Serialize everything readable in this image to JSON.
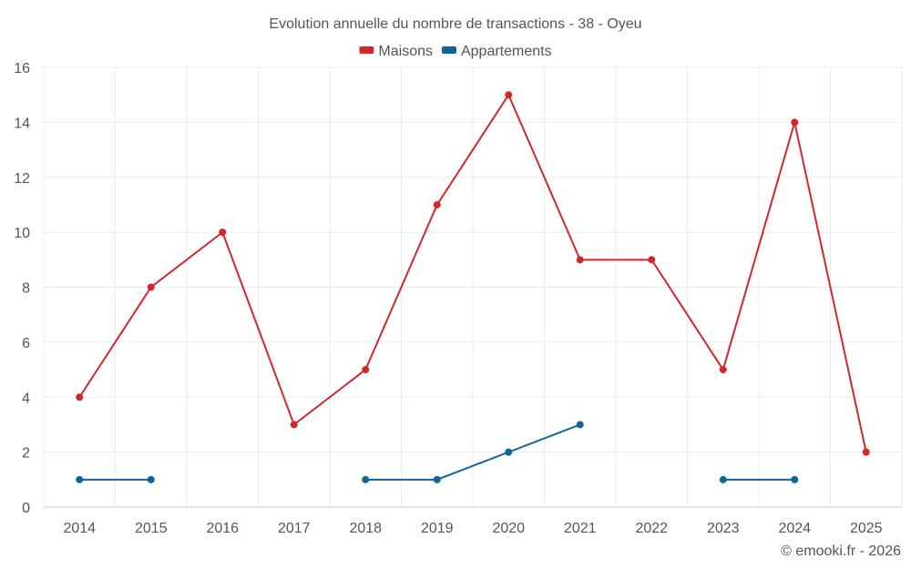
{
  "chart_data": {
    "type": "line",
    "title": "Evolution annuelle du nombre de transactions - 38 - Oyeu",
    "categories": [
      "2014",
      "2015",
      "2016",
      "2017",
      "2018",
      "2019",
      "2020",
      "2021",
      "2022",
      "2023",
      "2024",
      "2025"
    ],
    "ylim": [
      0,
      16
    ],
    "yticks": [
      0,
      2,
      4,
      6,
      8,
      10,
      12,
      14,
      16
    ],
    "grid": true,
    "legend_position": "top-center",
    "series": [
      {
        "name": "Maisons",
        "color": "#d0282d",
        "values": [
          4,
          8,
          10,
          3,
          5,
          11,
          15,
          9,
          9,
          5,
          14,
          2
        ]
      },
      {
        "name": "Appartements",
        "color": "#0d6598",
        "values": [
          1,
          1,
          null,
          null,
          1,
          1,
          2,
          3,
          null,
          1,
          1,
          null
        ]
      }
    ],
    "credit": "© emooki.fr - 2026"
  }
}
